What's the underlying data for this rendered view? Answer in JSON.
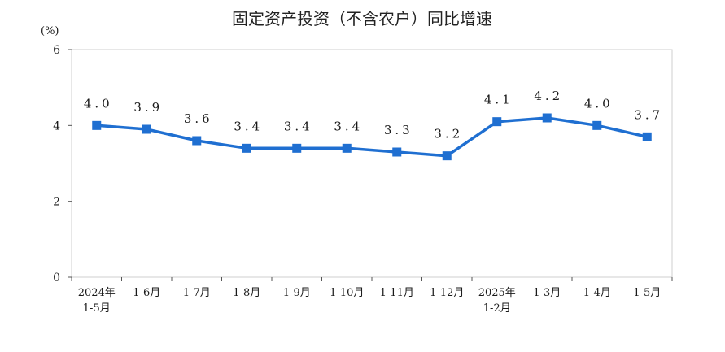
{
  "chart_data": {
    "type": "line",
    "title": "固定资产投资（不含农户）同比增速",
    "unit": "(%)",
    "xlabel": "",
    "ylabel": "",
    "ylim": [
      0,
      6
    ],
    "yticks": [
      "0",
      "2",
      "4",
      "6"
    ],
    "grid": false,
    "categories": [
      [
        "2024年",
        "1-5月"
      ],
      [
        "1-6月"
      ],
      [
        "1-7月"
      ],
      [
        "1-8月"
      ],
      [
        "1-9月"
      ],
      [
        "1-10月"
      ],
      [
        "1-11月"
      ],
      [
        "1-12月"
      ],
      [
        "2025年",
        "1-2月"
      ],
      [
        "1-3月"
      ],
      [
        "1-4月"
      ],
      [
        "1-5月"
      ]
    ],
    "series": [
      {
        "values": [
          4.0,
          3.9,
          3.6,
          3.4,
          3.4,
          3.4,
          3.3,
          3.2,
          4.1,
          4.2,
          4.0,
          3.7
        ],
        "labels": [
          "4.0",
          "3.9",
          "3.6",
          "3.4",
          "3.4",
          "3.4",
          "3.3",
          "3.2",
          "4.1",
          "4.2",
          "4.0",
          "3.7"
        ],
        "color": "#1f6fd1"
      }
    ]
  }
}
